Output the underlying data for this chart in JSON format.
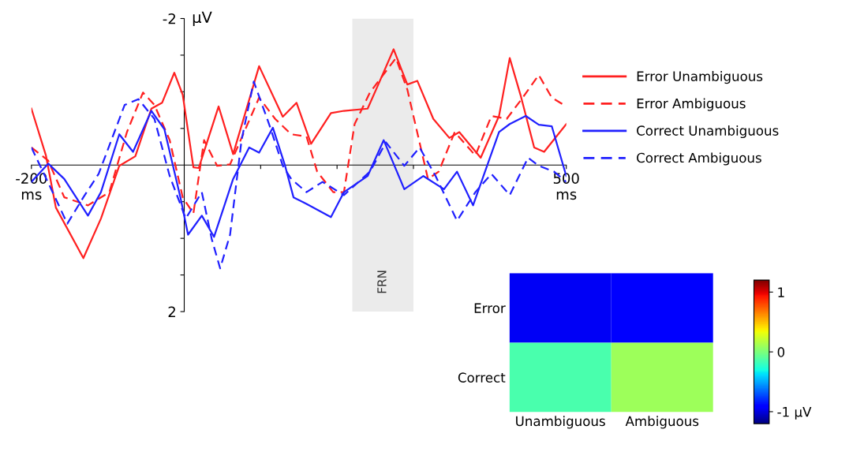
{
  "chart_data": [
    {
      "type": "line",
      "ylabel": "μV",
      "xlim": [
        -200,
        500
      ],
      "ylim": [
        2,
        -2
      ],
      "xticks": [
        {
          "value": -200,
          "label": "-200\nms"
        },
        {
          "value": 100,
          "label": null
        },
        {
          "value": 200,
          "label": null
        },
        {
          "value": 300,
          "label": null
        },
        {
          "value": 500,
          "label": "500\nms"
        }
      ],
      "yticks": [
        {
          "value": -2,
          "label": "-2"
        },
        {
          "value": -1.5,
          "label": null
        },
        {
          "value": -1,
          "label": null
        },
        {
          "value": -0.5,
          "label": null
        },
        {
          "value": 0.5,
          "label": null
        },
        {
          "value": 1,
          "label": null
        },
        {
          "value": 1.5,
          "label": null
        },
        {
          "value": 2,
          "label": "2"
        }
      ],
      "bands": [
        {
          "axis": "x",
          "from": 220,
          "to": 300,
          "label": "FRN",
          "color": "#ebebeb"
        }
      ],
      "legend": "right",
      "grid": false,
      "series": [
        {
          "name": "Error Unambiguous",
          "color": "#ff2020",
          "line_style": "solid",
          "x": [
            -200,
            -181,
            -168,
            -132,
            -109,
            -85,
            -64,
            -43,
            -29,
            -13,
            -2,
            12,
            19,
            45,
            64,
            98,
            129,
            147,
            166,
            192,
            209,
            240,
            254,
            274,
            292,
            305,
            326,
            347,
            360,
            388,
            412,
            426,
            440,
            458,
            471,
            500
          ],
          "values": [
            -0.77,
            -0.13,
            0.58,
            1.27,
            0.73,
            0.01,
            -0.12,
            -0.77,
            -0.85,
            -1.26,
            -0.96,
            0.03,
            0.04,
            -0.8,
            -0.15,
            -1.35,
            -0.66,
            -0.85,
            -0.29,
            -0.71,
            -0.74,
            -0.77,
            -1.1,
            -1.58,
            -1.1,
            -1.15,
            -0.63,
            -0.37,
            -0.45,
            -0.1,
            -0.67,
            -1.46,
            -0.96,
            -0.24,
            -0.18,
            -0.56
          ]
        },
        {
          "name": "Error Ambiguous",
          "color": "#ff2020",
          "line_style": "dashed",
          "x": [
            -200,
            -178,
            -157,
            -126,
            -98,
            -75,
            -54,
            -39,
            -19,
            -2,
            12,
            26,
            43,
            60,
            98,
            119,
            140,
            160,
            174,
            195,
            209,
            223,
            243,
            277,
            292,
            319,
            333,
            354,
            381,
            402,
            422,
            443,
            464,
            481,
            500
          ],
          "values": [
            -0.24,
            -0.06,
            0.44,
            0.55,
            0.37,
            -0.45,
            -0.99,
            -0.82,
            -0.34,
            0.44,
            0.66,
            -0.34,
            0.01,
            -0.01,
            -0.92,
            -0.63,
            -0.42,
            -0.39,
            0.09,
            0.37,
            0.37,
            -0.56,
            -0.99,
            -1.46,
            -1.03,
            0.19,
            0.09,
            -0.45,
            -0.13,
            -0.67,
            -0.63,
            -0.92,
            -1.23,
            -0.92,
            -0.8
          ]
        },
        {
          "name": "Correct Unambiguous",
          "color": "#2020ff",
          "line_style": "solid",
          "x": [
            -200,
            -178,
            -157,
            -126,
            -109,
            -85,
            -67,
            -43,
            -26,
            -5,
            5,
            23,
            39,
            64,
            85,
            98,
            116,
            132,
            143,
            160,
            192,
            209,
            240,
            261,
            288,
            313,
            340,
            357,
            378,
            412,
            426,
            447,
            464,
            481,
            500
          ],
          "values": [
            0.23,
            -0.02,
            0.19,
            0.69,
            0.37,
            -0.42,
            -0.18,
            -0.74,
            -0.49,
            0.44,
            0.95,
            0.69,
            0.98,
            0.19,
            -0.24,
            -0.17,
            -0.51,
            0.01,
            0.44,
            0.53,
            0.71,
            0.37,
            0.15,
            -0.34,
            0.33,
            0.15,
            0.33,
            0.09,
            0.55,
            -0.45,
            -0.56,
            -0.67,
            -0.55,
            -0.53,
            0.15
          ]
        },
        {
          "name": "Correct Ambiguous",
          "color": "#2020ff",
          "line_style": "dashed",
          "x": [
            -200,
            -174,
            -153,
            -132,
            -112,
            -78,
            -60,
            -39,
            -19,
            2,
            23,
            36,
            47,
            60,
            75,
            91,
            112,
            129,
            140,
            160,
            181,
            209,
            243,
            264,
            288,
            308,
            329,
            357,
            381,
            402,
            426,
            450,
            464,
            484,
            500
          ],
          "values": [
            -0.24,
            0.33,
            0.8,
            0.44,
            0.12,
            -0.82,
            -0.9,
            -0.63,
            0.15,
            0.73,
            0.37,
            1.01,
            1.41,
            0.95,
            -0.34,
            -1.14,
            -0.53,
            0.01,
            0.19,
            0.37,
            0.23,
            0.41,
            0.09,
            -0.31,
            0.01,
            -0.24,
            0.15,
            0.76,
            0.37,
            0.12,
            0.41,
            -0.1,
            0.01,
            0.09,
            0.23
          ]
        }
      ]
    },
    {
      "type": "heatmap",
      "categories": [
        "Unambiguous",
        "Ambiguous"
      ],
      "y_categories": [
        "Error",
        "Correct"
      ],
      "cells": [
        [
          -0.95,
          -0.9
        ],
        [
          -0.15,
          0.1
        ]
      ],
      "clim": [
        -1.2,
        1.2
      ],
      "cticks": [
        {
          "value": -1,
          "label": "-1 μV"
        },
        0,
        1
      ]
    }
  ]
}
